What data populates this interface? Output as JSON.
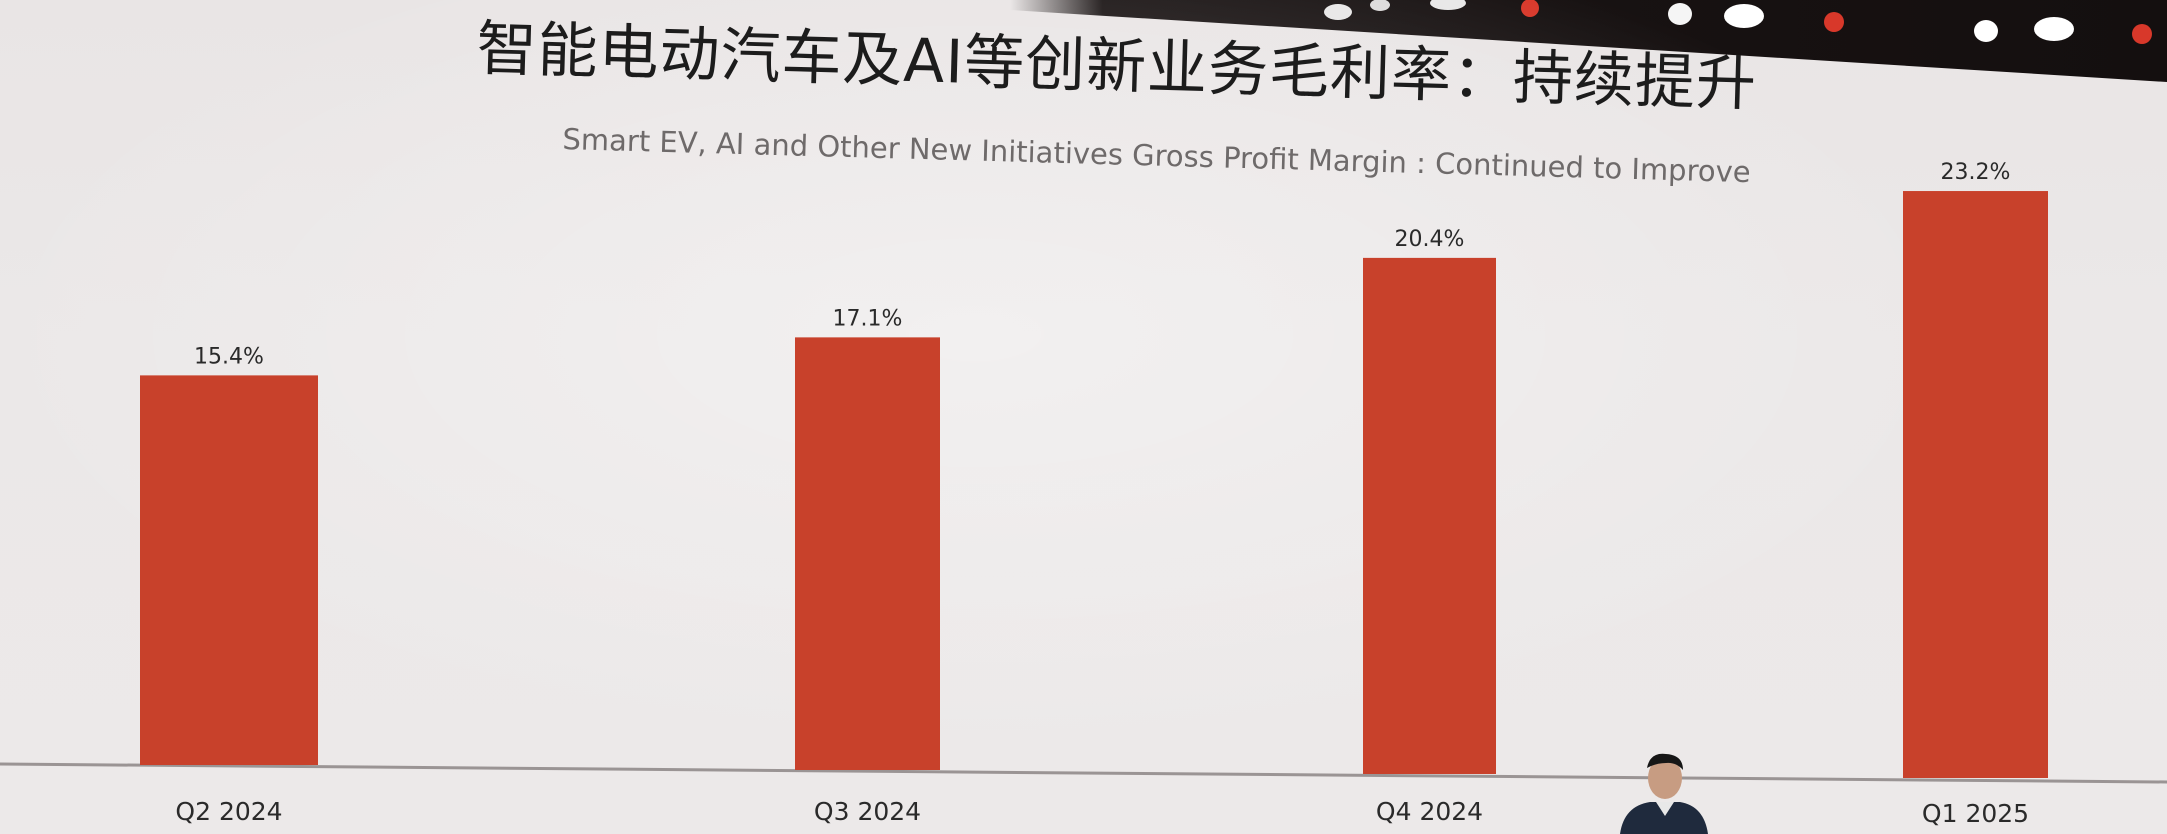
{
  "slide": {
    "title_cn": "智能电动汽车及AI等创新业务毛利率：持续提升",
    "title_en": "Smart EV, AI and Other New Initiatives Gross Profit Margin : Continued to Improve"
  },
  "colors": {
    "bar": "#c8412b",
    "background": "#ebe8e8"
  },
  "chart_data": {
    "type": "bar",
    "title": "智能电动汽车及AI等创新业务毛利率：持续提升",
    "subtitle": "Smart EV, AI and Other New Initiatives Gross Profit Margin : Continued to Improve",
    "categories": [
      "Q2 2024",
      "Q3 2024",
      "Q4 2024",
      "Q1 2025"
    ],
    "values": [
      15.4,
      17.1,
      20.4,
      23.2
    ],
    "value_labels": [
      "15.4%",
      "17.1%",
      "20.4%",
      "23.2%"
    ],
    "xlabel": "",
    "ylabel": "",
    "ylim": [
      0,
      25
    ],
    "grid": false,
    "legend": "none"
  }
}
